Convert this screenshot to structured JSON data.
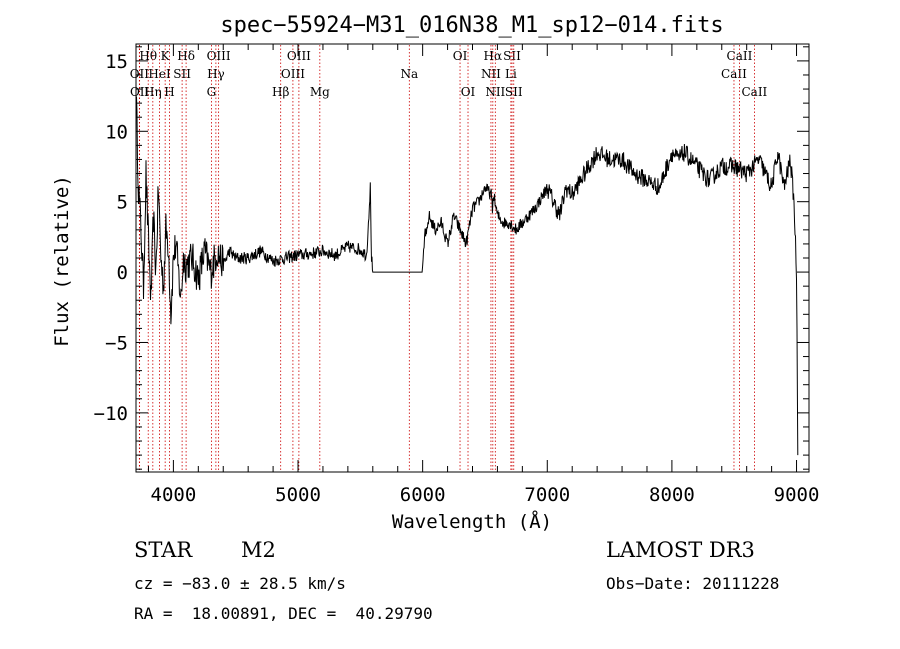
{
  "chart_data": {
    "type": "line",
    "title": "spec−55924−M31_016N38_M1_sp12−014.fits",
    "xlabel": "Wavelength (Å)",
    "ylabel": "Flux (relative)",
    "xlim": [
      3700,
      9100
    ],
    "ylim": [
      -14.2,
      16.2
    ],
    "x_ticks": [
      4000,
      5000,
      6000,
      7000,
      8000,
      9000
    ],
    "y_ticks": [
      -10,
      -5,
      0,
      5,
      10,
      15
    ],
    "y_tick_labels": [
      "−10",
      "−5",
      "0",
      "5",
      "10",
      "15"
    ],
    "series": [
      {
        "name": "flux",
        "x": [
          3700,
          3720,
          3740,
          3760,
          3780,
          3800,
          3820,
          3840,
          3860,
          3880,
          3900,
          3920,
          3940,
          3960,
          3980,
          4000,
          4020,
          4040,
          4060,
          4080,
          4100,
          4150,
          4200,
          4250,
          4300,
          4350,
          4400,
          4450,
          4500,
          4600,
          4700,
          4800,
          4900,
          5000,
          5100,
          5200,
          5300,
          5400,
          5500,
          5550,
          5580,
          5590,
          5600,
          5610,
          5620,
          5700,
          5800,
          5900,
          6000,
          6020,
          6030,
          6050,
          6100,
          6150,
          6200,
          6250,
          6300,
          6350,
          6400,
          6450,
          6500,
          6550,
          6560,
          6570,
          6600,
          6650,
          6700,
          6750,
          6800,
          6900,
          7000,
          7050,
          7100,
          7150,
          7200,
          7300,
          7400,
          7500,
          7600,
          7700,
          7800,
          7900,
          8000,
          8050,
          8100,
          8200,
          8300,
          8400,
          8500,
          8600,
          8700,
          8800,
          8850,
          8900,
          8950,
          8980,
          9000,
          9010
        ],
        "y": [
          13,
          6,
          3,
          -1,
          7,
          2,
          -2,
          4,
          0,
          6,
          1,
          -1,
          3,
          2,
          -3,
          1,
          2,
          0,
          -2,
          1,
          0.5,
          1,
          -0.5,
          1.5,
          0,
          1.5,
          0.5,
          1.5,
          1,
          1,
          1.5,
          0.8,
          1,
          1.2,
          1.3,
          1.5,
          1.2,
          1.8,
          1.6,
          1.2,
          6,
          1,
          0,
          0,
          0,
          0,
          0,
          0,
          0,
          3,
          2.5,
          4,
          3,
          3.5,
          2,
          4,
          3,
          2,
          4.5,
          5,
          6,
          5.5,
          4.5,
          5.5,
          4,
          3.5,
          3.5,
          3,
          3.5,
          4.5,
          6,
          5,
          4,
          6,
          5.5,
          7,
          8.5,
          8,
          8,
          7,
          6.5,
          6,
          8.5,
          8,
          8.5,
          7.5,
          6.5,
          7.5,
          7.5,
          7,
          8,
          6,
          8.5,
          6,
          8,
          5,
          0,
          -13
        ]
      }
    ],
    "lines": [
      {
        "label": "Hθ",
        "x": 3798,
        "row": 0
      },
      {
        "label": "OII",
        "x": 3727,
        "row": 1
      },
      {
        "label": "OII",
        "x": 3729,
        "row": 2
      },
      {
        "label": "Hη",
        "x": 3835,
        "row": 2
      },
      {
        "label": "HeI",
        "x": 3889,
        "row": 1
      },
      {
        "label": "K",
        "x": 3934,
        "row": 0
      },
      {
        "label": "H",
        "x": 3969,
        "row": 2
      },
      {
        "label": "SII",
        "x": 4070,
        "row": 1
      },
      {
        "label": "Hδ",
        "x": 4102,
        "row": 0
      },
      {
        "label": "OIII",
        "x": 4363,
        "row": 0
      },
      {
        "label": "Hγ",
        "x": 4341,
        "row": 1
      },
      {
        "label": "G",
        "x": 4305,
        "row": 2
      },
      {
        "label": "Hβ",
        "x": 4861,
        "row": 2
      },
      {
        "label": "OIII",
        "x": 4959,
        "row": 1
      },
      {
        "label": "OIII",
        "x": 5007,
        "row": 0
      },
      {
        "label": "Mg",
        "x": 5175,
        "row": 2
      },
      {
        "label": "Na",
        "x": 5893,
        "row": 1
      },
      {
        "label": "OI",
        "x": 6300,
        "row": 0
      },
      {
        "label": "OI",
        "x": 6364,
        "row": 2
      },
      {
        "label": "NII",
        "x": 6548,
        "row": 1
      },
      {
        "label": "Hα",
        "x": 6563,
        "row": 0
      },
      {
        "label": "NII",
        "x": 6583,
        "row": 2
      },
      {
        "label": "SII",
        "x": 6717,
        "row": 0
      },
      {
        "label": "Li",
        "x": 6708,
        "row": 1
      },
      {
        "label": "SII",
        "x": 6731,
        "row": 2
      },
      {
        "label": "CaII",
        "x": 8498,
        "row": 1
      },
      {
        "label": "CaII",
        "x": 8542,
        "row": 0
      },
      {
        "label": "CaII",
        "x": 8662,
        "row": 2
      }
    ]
  },
  "info": {
    "object_class": "STAR",
    "subclass": "M2",
    "survey": "LAMOST DR3",
    "cz": "cz = −83.0 ± 28.5 km/s",
    "obs_date": "Obs−Date: 20111228",
    "coords": "RA =  18.00891, DEC =  40.29790"
  },
  "colors": {
    "line_marker": "#cc0000",
    "spectrum": "#000000",
    "axes": "#000000"
  }
}
